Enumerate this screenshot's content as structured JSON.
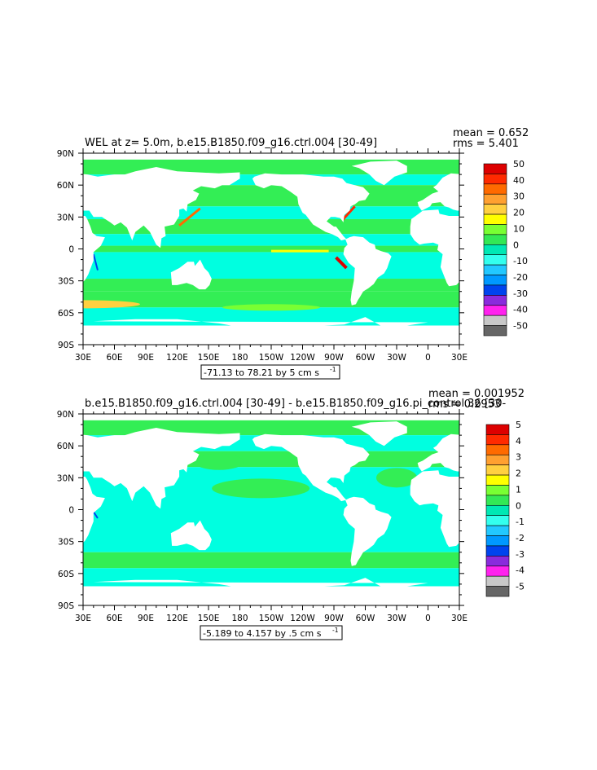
{
  "chart_data": [
    {
      "type": "heatmap",
      "title": "WEL at z=     5.0m, b.e15.B1850.f09_g16.ctrl.004 [30-49]",
      "stats": {
        "mean": "mean = 0.652",
        "rms": "rms = 5.401"
      },
      "range_label": "-71.13 to 78.21 by 5 cm s",
      "range_sup": "-1",
      "x_ticks": [
        "30E",
        "60E",
        "90E",
        "120E",
        "150E",
        "180",
        "150W",
        "120W",
        "90W",
        "60W",
        "30W",
        "0",
        "30E"
      ],
      "y_ticks": [
        "90N",
        "60N",
        "30N",
        "0",
        "30S",
        "60S",
        "90S"
      ],
      "colorbar": {
        "labels": [
          "50",
          "40",
          "30",
          "20",
          "10",
          "0",
          "-10",
          "-20",
          "-30",
          "-40",
          "-50"
        ],
        "colors": [
          "#dd0000",
          "#ff2a00",
          "#ff6a00",
          "#ffa030",
          "#ffd040",
          "#ffff00",
          "#79ff33",
          "#33e855",
          "#00e8b4",
          "#33ffee",
          "#22c8ff",
          "#0099ff",
          "#0044ee",
          "#8a2bdd",
          "#ff22ee",
          "#c8c8c8",
          "#666666"
        ]
      },
      "xlim": [
        "30E",
        "30E"
      ],
      "ylim": [
        "90S",
        "90N"
      ]
    },
    {
      "type": "heatmap",
      "title": "b.e15.B1850.f09_g16.ctrl.004 [30-49] - b.e15.B1850.f09_g16.pi_control.36 [30-",
      "stats": {
        "mean": "mean = 0.001952",
        "rms": "rms = 0.2953"
      },
      "range_label": "-5.189 to 4.157 by .5 cm s",
      "range_sup": "-1",
      "x_ticks": [
        "30E",
        "60E",
        "90E",
        "120E",
        "150E",
        "180",
        "150W",
        "120W",
        "90W",
        "60W",
        "30W",
        "0",
        "30E"
      ],
      "y_ticks": [
        "90N",
        "60N",
        "30N",
        "0",
        "30S",
        "60S",
        "90S"
      ],
      "colorbar": {
        "labels": [
          "5",
          "4",
          "3",
          "2",
          "1",
          "0",
          "-1",
          "-2",
          "-3",
          "-4",
          "-5"
        ],
        "colors": [
          "#dd0000",
          "#ff2a00",
          "#ff6a00",
          "#ffa030",
          "#ffd040",
          "#ffff00",
          "#79ff33",
          "#33e855",
          "#00e8b4",
          "#33ffee",
          "#22c8ff",
          "#0099ff",
          "#0044ee",
          "#8a2bdd",
          "#ff22ee",
          "#c8c8c8",
          "#666666"
        ]
      },
      "xlim": [
        "30E",
        "30E"
      ],
      "ylim": [
        "90S",
        "90N"
      ]
    }
  ],
  "colors": {
    "ocean_zero": "#00ffe0",
    "ocean_pos": "#33ee55",
    "land": "#ffffff",
    "pos_strong": "#dd0000",
    "neg_strong": "#0044ee"
  }
}
